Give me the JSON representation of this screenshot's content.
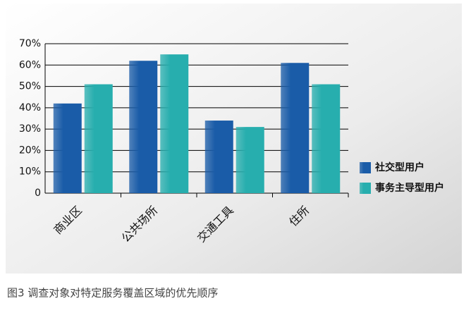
{
  "chart_data": {
    "type": "bar",
    "caption": "图3  调查对象对特定服务覆盖区域的优先顺序",
    "categories": [
      "商业区",
      "公共场所",
      "交通工具",
      "住所"
    ],
    "series": [
      {
        "name": "社交型用户",
        "color": "#1a5ca8",
        "values": [
          42,
          62,
          34,
          61
        ]
      },
      {
        "name": "事务主导型用户",
        "color": "#27aeae",
        "values": [
          51,
          65,
          31,
          51
        ]
      }
    ],
    "ylim": [
      0,
      70
    ],
    "yticks": [
      {
        "value": 0,
        "label": "0"
      },
      {
        "value": 10,
        "label": "10%"
      },
      {
        "value": 20,
        "label": "20%"
      },
      {
        "value": 30,
        "label": "30%"
      },
      {
        "value": 40,
        "label": "40%"
      },
      {
        "value": 50,
        "label": "50%"
      },
      {
        "value": 60,
        "label": "60%"
      },
      {
        "value": 70,
        "label": "70%"
      }
    ],
    "grid": true,
    "legend": "right"
  }
}
